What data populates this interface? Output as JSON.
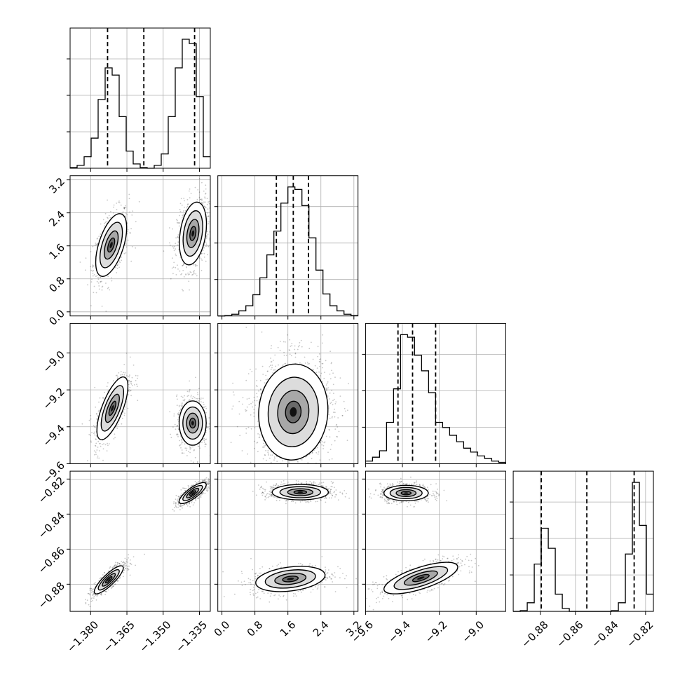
{
  "chart_data": {
    "type": "corner",
    "parameters": [
      {
        "index": 0,
        "axis_range": [
          -1.3885,
          -1.3305
        ],
        "ticks": [
          "−1.380",
          "−1.365",
          "−1.350",
          "−1.335"
        ],
        "tick_values": [
          -1.38,
          -1.365,
          -1.35,
          -1.335
        ],
        "quantile_lines": [
          -1.373,
          -1.358,
          -1.337
        ],
        "histogram": {
          "bin_edges": [
            -1.3885,
            -1.3856,
            -1.3827,
            -1.3798,
            -1.3769,
            -1.374,
            -1.3711,
            -1.3682,
            -1.3653,
            -1.3624,
            -1.3595,
            -1.3566,
            -1.3537,
            -1.3508,
            -1.3479,
            -1.345,
            -1.3421,
            -1.3392,
            -1.3363,
            -1.3334,
            -1.3305
          ],
          "counts": [
            0.5,
            2,
            8,
            21,
            48,
            70,
            65,
            36,
            12,
            3,
            0.5,
            0,
            2,
            10,
            36,
            70,
            90,
            87,
            50,
            8
          ]
        }
      },
      {
        "index": 1,
        "axis_range": [
          -0.1,
          3.3
        ],
        "ticks": [
          "0.0",
          "0.8",
          "1.6",
          "2.4",
          "3.2"
        ],
        "tick_values": [
          0.0,
          0.8,
          1.6,
          2.4,
          3.2
        ],
        "quantile_lines": [
          1.32,
          1.73,
          2.1
        ],
        "histogram": {
          "bin_edges": [
            -0.1,
            0.07,
            0.24,
            0.41,
            0.58,
            0.75,
            0.92,
            1.09,
            1.26,
            1.43,
            1.6,
            1.77,
            1.94,
            2.11,
            2.28,
            2.45,
            2.62,
            2.79,
            2.96,
            3.13,
            3.3
          ],
          "counts": [
            0,
            0.5,
            2,
            6,
            12,
            25,
            45,
            72,
            100,
            133,
            152,
            149,
            130,
            92,
            54,
            26,
            12,
            6,
            2,
            0.5
          ]
        }
      },
      {
        "index": 2,
        "axis_range": [
          -9.6,
          -8.84
        ],
        "ticks": [
          "−9.6",
          "−9.4",
          "−9.2",
          "−9.0"
        ],
        "tick_values": [
          -9.6,
          -9.4,
          -9.2,
          -9.0
        ],
        "quantile_lines": [
          -9.424,
          -9.345,
          -9.22
        ],
        "histogram": {
          "bin_edges": [
            -9.6,
            -9.562,
            -9.524,
            -9.486,
            -9.448,
            -9.41,
            -9.372,
            -9.334,
            -9.296,
            -9.258,
            -9.22,
            -9.182,
            -9.144,
            -9.106,
            -9.068,
            -9.03,
            -8.992,
            -8.954,
            -8.916,
            -8.878,
            -8.84
          ],
          "counts": [
            2,
            5,
            10,
            32,
            58,
            100,
            98,
            84,
            72,
            55,
            32,
            28,
            22,
            17,
            12,
            9,
            6,
            4,
            2,
            1
          ]
        }
      },
      {
        "index": 3,
        "axis_range": [
          -0.8955,
          -0.8155
        ],
        "ticks": [
          "−0.88",
          "−0.86",
          "−0.84",
          "−0.82"
        ],
        "tick_values": [
          -0.88,
          -0.86,
          -0.84,
          -0.82
        ],
        "quantile_lines": [
          -0.8795,
          -0.8535,
          -0.8265
        ],
        "histogram": {
          "bin_edges": [
            -0.8955,
            -0.8915,
            -0.8875,
            -0.8835,
            -0.8795,
            -0.8755,
            -0.8715,
            -0.8675,
            -0.8635,
            -0.8595,
            -0.8555,
            -0.8515,
            -0.8475,
            -0.8435,
            -0.8395,
            -0.8355,
            -0.8315,
            -0.8275,
            -0.8235,
            -0.8195,
            -0.8155
          ],
          "counts": [
            0,
            0.5,
            6,
            33,
            58,
            44,
            12,
            2,
            0,
            0,
            0,
            0,
            0,
            0,
            0.5,
            6,
            40,
            90,
            60,
            12
          ]
        }
      }
    ],
    "grid": true,
    "joint_panels": [
      {
        "row": 1,
        "col": 0,
        "clusters": [
          {
            "mean": [
              -1.3715,
              1.62
            ],
            "sd": [
              0.0032,
              0.38
            ],
            "rho": 0.55,
            "weight": 0.45
          },
          {
            "mean": [
              -1.3377,
              1.9
            ],
            "sd": [
              0.0028,
              0.38
            ],
            "rho": 0.3,
            "weight": 0.55
          }
        ]
      },
      {
        "row": 2,
        "col": 0,
        "clusters": [
          {
            "mean": [
              -1.371,
              -9.3
            ],
            "sd": [
              0.0032,
              0.085
            ],
            "rho": 0.7,
            "weight": 0.45
          },
          {
            "mean": [
              -1.3378,
              -9.38
            ],
            "sd": [
              0.0028,
              0.06
            ],
            "rho": 0.0,
            "weight": 0.55
          }
        ]
      },
      {
        "row": 3,
        "col": 0,
        "clusters": [
          {
            "mean": [
              -1.3725,
              -0.8775
            ],
            "sd": [
              0.003,
              0.004
            ],
            "rho": 0.85,
            "weight": 0.45
          },
          {
            "mean": [
              -1.3378,
              -0.828
            ],
            "sd": [
              0.0028,
              0.003
            ],
            "rho": 0.8,
            "weight": 0.55
          }
        ]
      },
      {
        "row": 2,
        "col": 1,
        "clusters": [
          {
            "mean": [
              1.73,
              -9.32
            ],
            "sd": [
              0.42,
              0.13
            ],
            "rho": 0.05,
            "weight": 1.0
          }
        ]
      },
      {
        "row": 3,
        "col": 1,
        "clusters": [
          {
            "mean": [
              1.9,
              -0.8275
            ],
            "sd": [
              0.34,
              0.0022
            ],
            "rho": 0.0,
            "weight": 0.55
          },
          {
            "mean": [
              1.66,
              -0.877
            ],
            "sd": [
              0.42,
              0.0036
            ],
            "rho": 0.3,
            "weight": 0.45
          }
        ]
      },
      {
        "row": 3,
        "col": 2,
        "clusters": [
          {
            "mean": [
              -9.38,
              -0.828
            ],
            "sd": [
              0.06,
              0.0022
            ],
            "rho": 0.0,
            "weight": 0.55
          },
          {
            "mean": [
              -9.3,
              -0.8765
            ],
            "sd": [
              0.1,
              0.0045
            ],
            "rho": 0.7,
            "weight": 0.45
          }
        ]
      }
    ]
  }
}
